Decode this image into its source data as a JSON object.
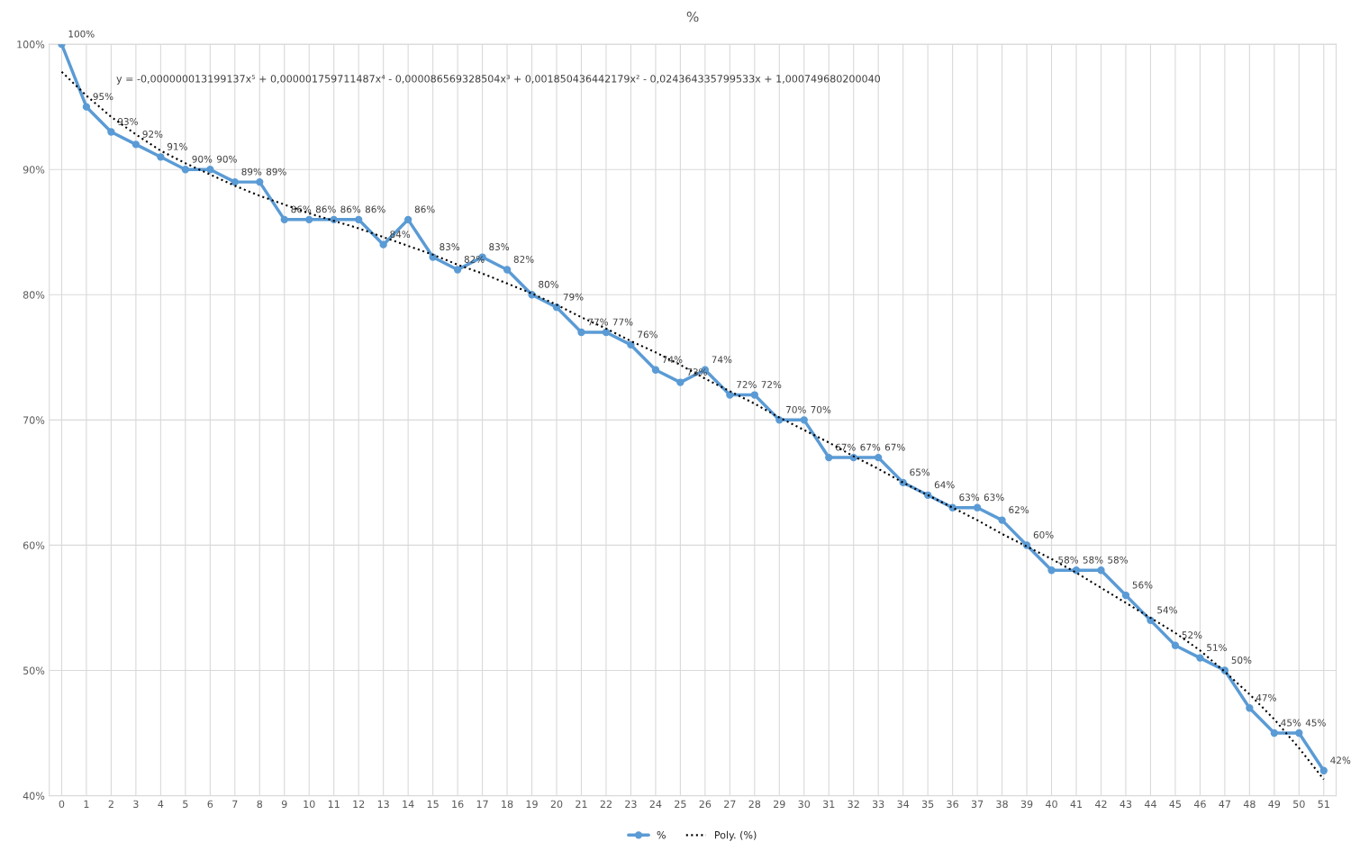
{
  "chart_data": {
    "type": "line",
    "title": "%",
    "categories": [
      "0",
      "1",
      "2",
      "3",
      "4",
      "5",
      "6",
      "7",
      "8",
      "9",
      "10",
      "11",
      "12",
      "13",
      "14",
      "15",
      "16",
      "17",
      "18",
      "19",
      "20",
      "21",
      "22",
      "23",
      "24",
      "25",
      "26",
      "27",
      "28",
      "29",
      "30",
      "31",
      "32",
      "33",
      "34",
      "35",
      "36",
      "37",
      "38",
      "39",
      "40",
      "41",
      "42",
      "43",
      "44",
      "45",
      "46",
      "47",
      "48",
      "49",
      "50",
      "51"
    ],
    "series": [
      {
        "name": "%",
        "color": "#5b9bd5",
        "marker": "circle",
        "line_style": "solid",
        "values": [
          100,
          95,
          93,
          92,
          91,
          90,
          90,
          89,
          89,
          86,
          86,
          86,
          86,
          84,
          86,
          83,
          82,
          83,
          82,
          80,
          79,
          77,
          77,
          76,
          74,
          73,
          74,
          72,
          72,
          70,
          70,
          67,
          67,
          67,
          65,
          64,
          63,
          63,
          62,
          60,
          58,
          58,
          58,
          56,
          54,
          52,
          51,
          50,
          47,
          45,
          45,
          42
        ],
        "value_labels": [
          "100%",
          "95%",
          "93%",
          "92%",
          "91%",
          "90%",
          "90%",
          "89%",
          "89%",
          "86%",
          "86%",
          "86%",
          "86%",
          "84%",
          "86%",
          "83%",
          "82%",
          "83%",
          "82%",
          "80%",
          "79%",
          "77%",
          "77%",
          "76%",
          "74%",
          "73%",
          "74%",
          "72%",
          "72%",
          "70%",
          "70%",
          "67%",
          "67%",
          "67%",
          "65%",
          "64%",
          "63%",
          "63%",
          "62%",
          "60%",
          "58%",
          "58%",
          "58%",
          "56%",
          "54%",
          "52%",
          "51%",
          "50%",
          "47%",
          "45%",
          "45%",
          "42%"
        ]
      },
      {
        "name": "Poly. (%)",
        "color": "#000000",
        "marker": "none",
        "line_style": "dotted",
        "values": [
          97.8,
          95.9,
          94.2,
          92.8,
          91.5,
          90.5,
          89.6,
          88.7,
          87.9,
          87.2,
          86.5,
          85.9,
          85.3,
          84.6,
          83.9,
          83.2,
          82.4,
          81.7,
          80.9,
          80.1,
          79.2,
          78.2,
          77.3,
          76.3,
          75.4,
          74.4,
          73.3,
          72.3,
          71.3,
          70.2,
          69.2,
          68.2,
          67.1,
          66.1,
          65.0,
          64.0,
          63.0,
          62.0,
          60.9,
          59.9,
          58.9,
          57.8,
          56.6,
          55.4,
          54.2,
          53.0,
          51.6,
          49.9,
          48.1,
          46.1,
          43.8,
          41.3
        ]
      }
    ],
    "ylim": [
      40,
      100
    ],
    "yticks": [
      {
        "value": 40,
        "label": "40%"
      },
      {
        "value": 50,
        "label": "50%"
      },
      {
        "value": 60,
        "label": "60%"
      },
      {
        "value": 70,
        "label": "70%"
      },
      {
        "value": 80,
        "label": "80%"
      },
      {
        "value": 90,
        "label": "90%"
      },
      {
        "value": 100,
        "label": "100%"
      }
    ],
    "grid": true,
    "legend": "bottom",
    "annotations": [
      "y = -0,000000013199137x⁵ + 0,000001759711487x⁴ - 0,000086569328504x³ + 0,001850436442179x² - 0,024364335799533x + 1,000749680200040"
    ]
  }
}
